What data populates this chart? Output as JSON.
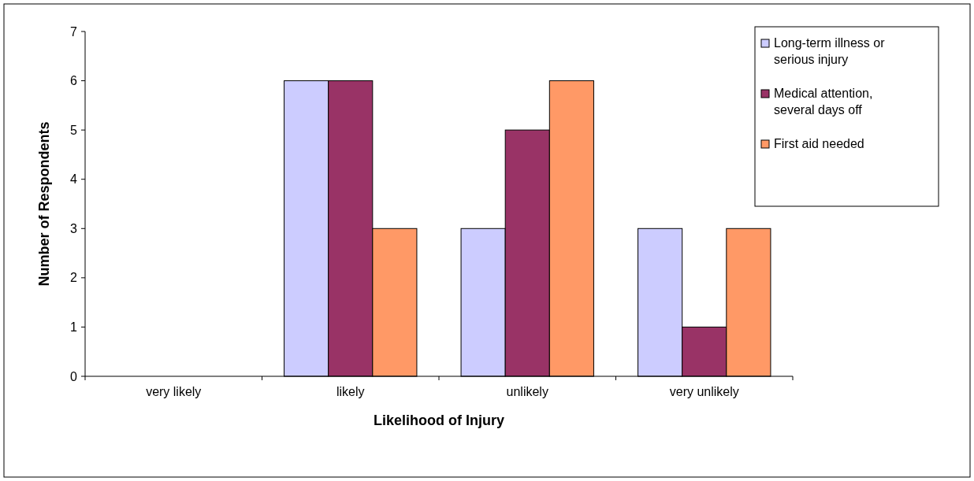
{
  "chart_data": {
    "type": "bar",
    "xlabel": "Likelihood of Injury",
    "ylabel": "Number of Respondents",
    "categories": [
      "very likely",
      "likely",
      "unlikely",
      "very unlikely"
    ],
    "series": [
      {
        "name": "Long-term illness or serious injury",
        "color": "#ccccff",
        "values": [
          0,
          6,
          3,
          3
        ]
      },
      {
        "name": "Medical attention, several days off",
        "color": "#993366",
        "values": [
          0,
          6,
          5,
          1
        ]
      },
      {
        "name": "First aid needed",
        "color": "#ff9966",
        "values": [
          0,
          3,
          6,
          3
        ]
      }
    ],
    "ylim": [
      0,
      7
    ],
    "yticks": [
      0,
      1,
      2,
      3,
      4,
      5,
      6,
      7
    ],
    "grid": false,
    "legend": "top right"
  }
}
